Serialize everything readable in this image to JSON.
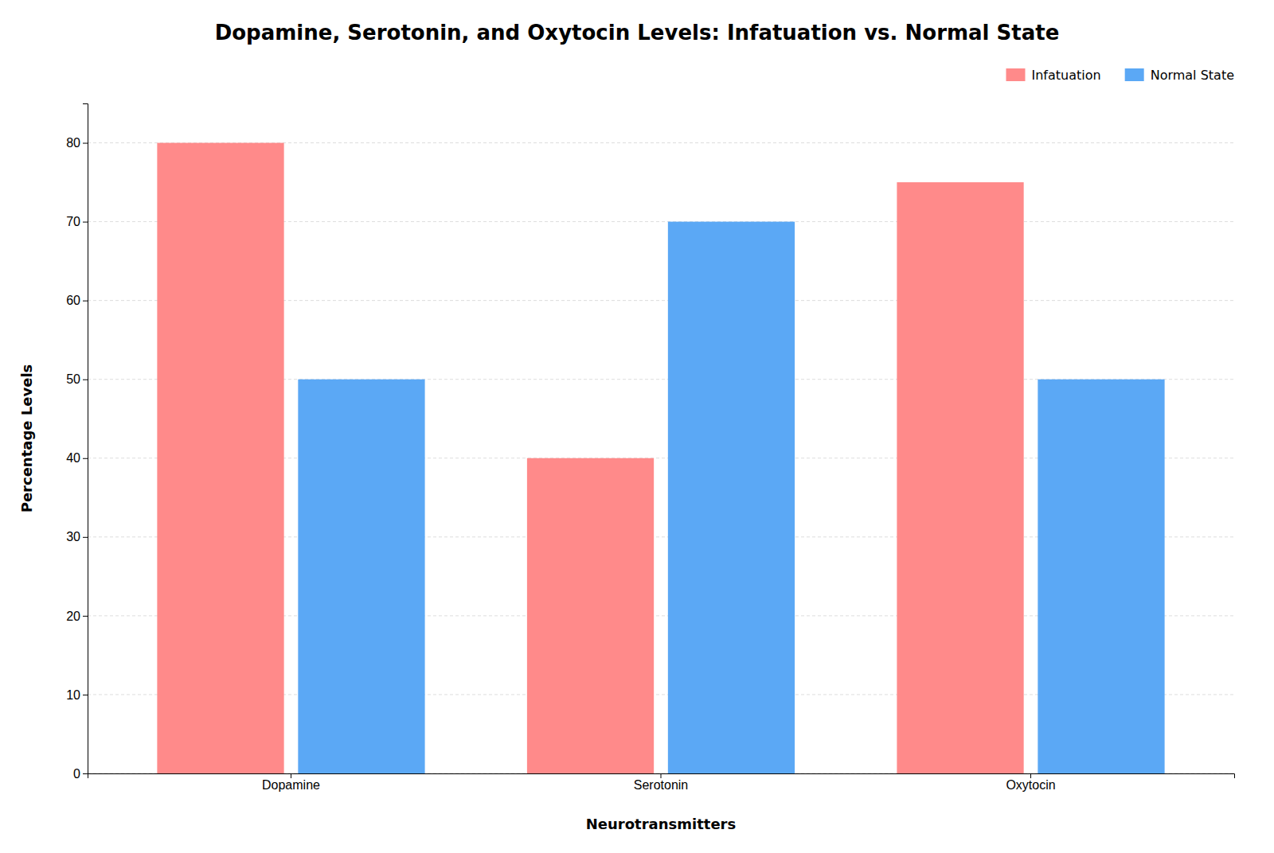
{
  "chart_data": {
    "type": "bar",
    "title": "Dopamine, Serotonin, and Oxytocin Levels: Infatuation vs. Normal State",
    "xlabel": "Neurotransmitters",
    "ylabel": "Percentage Levels",
    "categories": [
      "Dopamine",
      "Serotonin",
      "Oxytocin"
    ],
    "series": [
      {
        "name": "Infatuation",
        "color": "#FF8A8A",
        "values": [
          80,
          40,
          75
        ]
      },
      {
        "name": "Normal State",
        "color": "#5BA8F5",
        "values": [
          50,
          70,
          50
        ]
      }
    ],
    "ylim": [
      0,
      85
    ],
    "yticks": [
      0,
      10,
      20,
      30,
      40,
      50,
      60,
      70,
      80
    ],
    "grid": true,
    "legend": "upper right"
  }
}
